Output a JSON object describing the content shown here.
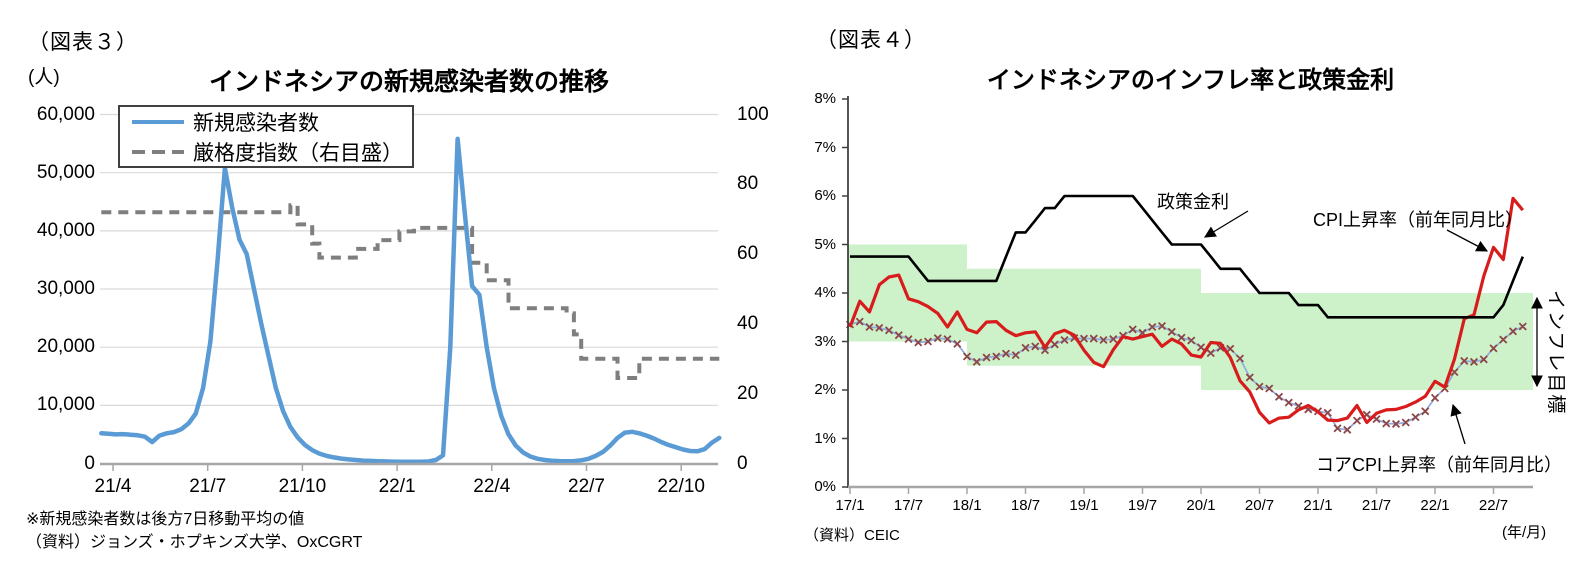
{
  "figure3": {
    "tag": "（図表３）",
    "unit": "(人)",
    "title": "インドネシアの新規感染者数の推移",
    "legend": {
      "items": [
        {
          "label": "新規感染者数"
        },
        {
          "label": "厳格度指数（右目盛）"
        }
      ]
    },
    "left_axis_ticks": [
      "60,000",
      "50,000",
      "40,000",
      "30,000",
      "20,000",
      "10,000",
      "0"
    ],
    "right_axis_ticks": [
      "100",
      "80",
      "60",
      "40",
      "20",
      "0"
    ],
    "x_axis_ticks": [
      "21/4",
      "21/7",
      "21/10",
      "22/1",
      "22/4",
      "22/7",
      "22/10"
    ],
    "note1": "※新規感染者数は後方7日移動平均の値",
    "note2": "（資料）ジョンズ・ホプキンズ大学、OxCGRT"
  },
  "figure4": {
    "tag": "（図表４）",
    "title": "インドネシアのインフレ率と政策金利",
    "y_axis_ticks": [
      "8%",
      "7%",
      "6%",
      "5%",
      "4%",
      "3%",
      "2%",
      "1%",
      "0%"
    ],
    "x_axis_ticks": [
      "17/1",
      "17/7",
      "18/1",
      "18/7",
      "19/1",
      "19/7",
      "20/1",
      "20/7",
      "21/1",
      "21/7",
      "22/1",
      "22/7"
    ],
    "x_unit": "(年/月)",
    "source": "（資料）CEIC",
    "annotations": {
      "policy": "政策金利",
      "cpi": "CPI上昇率（前年同月比）",
      "core": "コアCPI上昇率（前年同月比）",
      "target": "インフレ目標"
    }
  },
  "colors": {
    "cases": "#5B9BD5",
    "stringency": "#7F7F7F",
    "policy": "#000000",
    "cpi": "#D81C1C",
    "core_line": "#8FAADC",
    "core_marker": "#8E4545",
    "band": "#CDF2CA",
    "grid": "#D9D9D9",
    "axis": "#A6A6A6",
    "axis_dark": "#404040"
  },
  "chart_data": [
    {
      "type": "line",
      "title": "インドネシアの新規感染者数の推移",
      "x_axis_note": "months, 0 = 2021/4; weekly points from t=-0.37 step 0.2303 month",
      "x_tick_labels": [
        "21/4",
        "21/7",
        "21/10",
        "22/1",
        "22/4",
        "22/7",
        "22/10"
      ],
      "left_ylabel": "(人)",
      "left_ylim": [
        0,
        60000
      ],
      "right_ylim": [
        0,
        100
      ],
      "series": [
        {
          "name": "新規感染者数",
          "axis": "left",
          "style": "solid",
          "start_month": -0.37,
          "step_month": 0.2303,
          "values": [
            5200,
            5100,
            5000,
            5050,
            4950,
            4850,
            4600,
            3700,
            4800,
            5200,
            5400,
            5900,
            6900,
            8600,
            13000,
            21000,
            35000,
            50800,
            44000,
            38500,
            36000,
            30000,
            24000,
            18500,
            13000,
            9000,
            6300,
            4500,
            3200,
            2300,
            1700,
            1300,
            1050,
            850,
            700,
            600,
            500,
            450,
            400,
            360,
            330,
            310,
            300,
            290,
            300,
            340,
            600,
            1400,
            20000,
            55800,
            43000,
            30500,
            29000,
            20000,
            13000,
            8200,
            5000,
            3100,
            1900,
            1200,
            800,
            600,
            480,
            420,
            390,
            420,
            550,
            800,
            1300,
            2000,
            3100,
            4400,
            5300,
            5450,
            5200,
            4800,
            4300,
            3700,
            3200,
            2800,
            2400,
            2150,
            2100,
            2500,
            3600,
            4400
          ]
        },
        {
          "name": "厳格度指数（右目盛）",
          "axis": "right",
          "style": "dashed-step",
          "start_month": -0.37,
          "step_month": 0.2303,
          "values": [
            72,
            72,
            72,
            72,
            72,
            72,
            72,
            72,
            72,
            72,
            72,
            72,
            72,
            72,
            72,
            72,
            72,
            72,
            72,
            72,
            72,
            72,
            72,
            72,
            72,
            72,
            74,
            68.5,
            68.5,
            63,
            59,
            59,
            59,
            59,
            59,
            61.5,
            61.5,
            61.5,
            64,
            64,
            64,
            66.5,
            66.5,
            67.5,
            67.5,
            67.5,
            67.5,
            67.5,
            67.5,
            67.5,
            67.5,
            57.5,
            57.5,
            52.5,
            52.5,
            52.5,
            44.5,
            44.5,
            44.5,
            44.5,
            44.5,
            44.5,
            44.5,
            44.5,
            43,
            37,
            30,
            30,
            30,
            30,
            30,
            24.5,
            24.5,
            24.5,
            30,
            30,
            30,
            30,
            30,
            30,
            30,
            30,
            30,
            30,
            30,
            30
          ]
        }
      ]
    },
    {
      "type": "line",
      "title": "インドネシアのインフレ率と政策金利",
      "x_axis_note": "monthly, 2017/1 - 2022/10",
      "x_tick_labels": [
        "17/1",
        "17/7",
        "18/1",
        "18/7",
        "19/1",
        "19/7",
        "20/1",
        "20/7",
        "21/1",
        "21/7",
        "22/1",
        "22/7"
      ],
      "ylim": [
        0,
        8
      ],
      "ylabel": "%",
      "target_bands": [
        {
          "start_month": 0,
          "end_month": 12,
          "low": 3.0,
          "high": 5.0
        },
        {
          "start_month": 12,
          "end_month": 36,
          "low": 2.5,
          "high": 4.5
        },
        {
          "start_month": 36,
          "end_month": 70.1,
          "low": 2.0,
          "high": 4.0
        }
      ],
      "series": [
        {
          "name": "政策金利",
          "values": [
            4.75,
            4.75,
            4.75,
            4.75,
            4.75,
            4.75,
            4.75,
            4.5,
            4.25,
            4.25,
            4.25,
            4.25,
            4.25,
            4.25,
            4.25,
            4.25,
            4.75,
            5.25,
            5.25,
            5.5,
            5.75,
            5.75,
            6.0,
            6.0,
            6.0,
            6.0,
            6.0,
            6.0,
            6.0,
            6.0,
            5.75,
            5.5,
            5.25,
            5.0,
            5.0,
            5.0,
            5.0,
            4.75,
            4.5,
            4.5,
            4.5,
            4.25,
            4.0,
            4.0,
            4.0,
            4.0,
            3.75,
            3.75,
            3.75,
            3.5,
            3.5,
            3.5,
            3.5,
            3.5,
            3.5,
            3.5,
            3.5,
            3.5,
            3.5,
            3.5,
            3.5,
            3.5,
            3.5,
            3.5,
            3.5,
            3.5,
            3.5,
            3.75,
            4.25,
            4.75
          ]
        },
        {
          "name": "CPI上昇率（前年同月比）",
          "values": [
            3.3,
            3.83,
            3.61,
            4.17,
            4.33,
            4.37,
            3.88,
            3.82,
            3.72,
            3.58,
            3.3,
            3.61,
            3.25,
            3.18,
            3.4,
            3.41,
            3.23,
            3.12,
            3.18,
            3.2,
            2.88,
            3.16,
            3.23,
            3.13,
            2.82,
            2.57,
            2.48,
            2.83,
            3.1,
            3.05,
            3.1,
            3.15,
            2.9,
            3.05,
            2.95,
            2.72,
            2.68,
            2.98,
            2.96,
            2.67,
            2.19,
            1.96,
            1.54,
            1.32,
            1.42,
            1.44,
            1.59,
            1.68,
            1.55,
            1.38,
            1.37,
            1.42,
            1.68,
            1.33,
            1.52,
            1.59,
            1.6,
            1.66,
            1.75,
            1.87,
            2.18,
            2.06,
            2.64,
            3.47,
            3.55,
            4.35,
            4.94,
            4.69,
            5.95,
            5.71
          ]
        },
        {
          "name": "コアCPI上昇率（前年同月比）",
          "marker": "x",
          "values": [
            3.35,
            3.41,
            3.3,
            3.28,
            3.23,
            3.13,
            3.05,
            2.98,
            3.0,
            3.07,
            3.05,
            2.95,
            2.69,
            2.58,
            2.67,
            2.69,
            2.75,
            2.72,
            2.87,
            2.9,
            2.82,
            2.94,
            3.03,
            3.07,
            3.06,
            3.06,
            3.03,
            3.05,
            3.12,
            3.25,
            3.18,
            3.3,
            3.32,
            3.2,
            3.08,
            3.02,
            2.88,
            2.76,
            2.87,
            2.85,
            2.65,
            2.26,
            2.07,
            2.03,
            1.86,
            1.74,
            1.67,
            1.6,
            1.56,
            1.53,
            1.21,
            1.18,
            1.37,
            1.49,
            1.4,
            1.31,
            1.3,
            1.33,
            1.44,
            1.56,
            1.84,
            2.03,
            2.37,
            2.6,
            2.58,
            2.63,
            2.86,
            3.04,
            3.21,
            3.31
          ]
        }
      ]
    }
  ]
}
